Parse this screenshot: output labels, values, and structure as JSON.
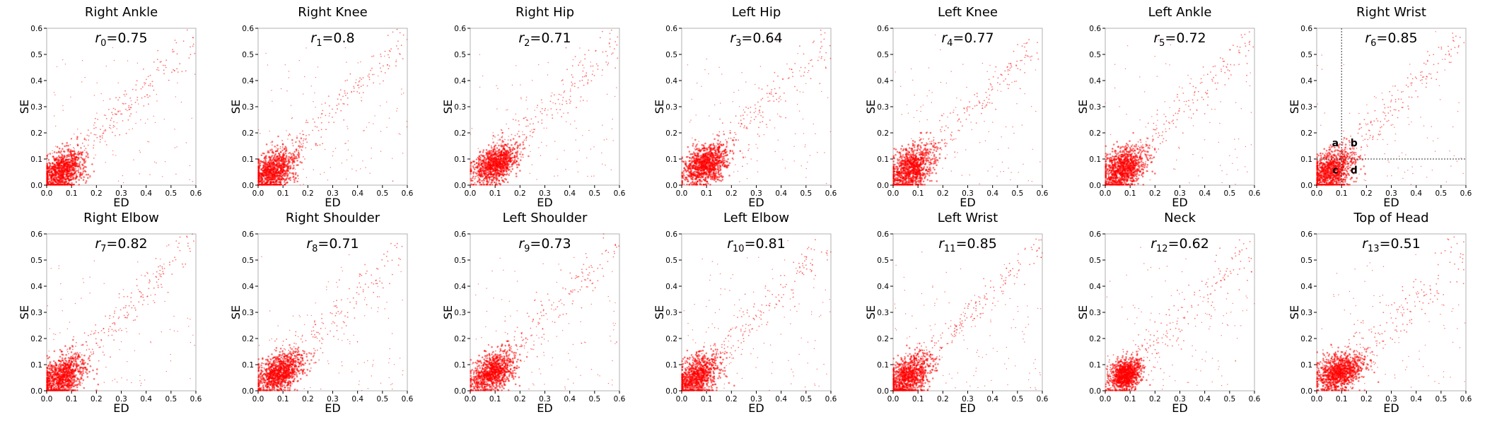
{
  "chart_data": [
    {
      "type": "scatter",
      "title": "Right Ankle",
      "annotation": {
        "symbol": "r",
        "subscript": "0",
        "value": "=0.75"
      },
      "xlabel": "ED",
      "ylabel": "SE",
      "xlim": [
        0,
        0.6
      ],
      "ylim": [
        0,
        0.6
      ],
      "xticks": [
        "0.0",
        "0.1",
        "0.2",
        "0.3",
        "0.4",
        "0.5",
        "0.6"
      ],
      "yticks": [
        "0.0",
        "0.1",
        "0.2",
        "0.3",
        "0.4",
        "0.5",
        "0.6"
      ],
      "grid": false,
      "point_color": "#ff0000",
      "cluster": {
        "center": [
          0.06,
          0.05
        ],
        "spread": [
          0.045,
          0.04
        ],
        "max": [
          0.22,
          0.17
        ]
      },
      "correlation": 0.75
    },
    {
      "type": "scatter",
      "title": "Right Knee",
      "annotation": {
        "symbol": "r",
        "subscript": "1",
        "value": "=0.8"
      },
      "xlabel": "ED",
      "ylabel": "SE",
      "xlim": [
        0,
        0.6
      ],
      "ylim": [
        0,
        0.6
      ],
      "xticks": [
        "0.0",
        "0.1",
        "0.2",
        "0.3",
        "0.4",
        "0.5",
        "0.6"
      ],
      "yticks": [
        "0.0",
        "0.1",
        "0.2",
        "0.3",
        "0.4",
        "0.5",
        "0.6"
      ],
      "grid": false,
      "point_color": "#ff0000",
      "cluster": {
        "center": [
          0.06,
          0.05
        ],
        "spread": [
          0.045,
          0.04
        ],
        "max": [
          0.22,
          0.17
        ]
      },
      "correlation": 0.8
    },
    {
      "type": "scatter",
      "title": "Right Hip",
      "annotation": {
        "symbol": "r",
        "subscript": "2",
        "value": "=0.71"
      },
      "xlabel": "ED",
      "ylabel": "SE",
      "xlim": [
        0,
        0.6
      ],
      "ylim": [
        0,
        0.6
      ],
      "xticks": [
        "0.0",
        "0.1",
        "0.2",
        "0.3",
        "0.4",
        "0.5",
        "0.6"
      ],
      "yticks": [
        "0.0",
        "0.1",
        "0.2",
        "0.3",
        "0.4",
        "0.5",
        "0.6"
      ],
      "grid": false,
      "point_color": "#ff0000",
      "cluster": {
        "center": [
          0.1,
          0.08
        ],
        "spread": [
          0.045,
          0.035
        ],
        "max": [
          0.24,
          0.17
        ]
      },
      "correlation": 0.71
    },
    {
      "type": "scatter",
      "title": "Left Hip",
      "annotation": {
        "symbol": "r",
        "subscript": "3",
        "value": "=0.64"
      },
      "xlabel": "ED",
      "ylabel": "SE",
      "xlim": [
        0,
        0.6
      ],
      "ylim": [
        0,
        0.6
      ],
      "xticks": [
        "0.0",
        "0.1",
        "0.2",
        "0.3",
        "0.4",
        "0.5",
        "0.6"
      ],
      "yticks": [
        "0.0",
        "0.1",
        "0.2",
        "0.3",
        "0.4",
        "0.5",
        "0.6"
      ],
      "grid": false,
      "point_color": "#ff0000",
      "cluster": {
        "center": [
          0.1,
          0.08
        ],
        "spread": [
          0.045,
          0.035
        ],
        "max": [
          0.24,
          0.17
        ]
      },
      "correlation": 0.64
    },
    {
      "type": "scatter",
      "title": "Left Knee",
      "annotation": {
        "symbol": "r",
        "subscript": "4",
        "value": "=0.77"
      },
      "xlabel": "ED",
      "ylabel": "SE",
      "xlim": [
        0,
        0.6
      ],
      "ylim": [
        0,
        0.6
      ],
      "xticks": [
        "0.0",
        "0.1",
        "0.2",
        "0.3",
        "0.4",
        "0.5",
        "0.6"
      ],
      "yticks": [
        "0.0",
        "0.1",
        "0.2",
        "0.3",
        "0.4",
        "0.5",
        "0.6"
      ],
      "grid": false,
      "point_color": "#ff0000",
      "cluster": {
        "center": [
          0.07,
          0.06
        ],
        "spread": [
          0.045,
          0.04
        ],
        "max": [
          0.22,
          0.17
        ]
      },
      "correlation": 0.77
    },
    {
      "type": "scatter",
      "title": "Left Ankle",
      "annotation": {
        "symbol": "r",
        "subscript": "5",
        "value": "=0.72"
      },
      "xlabel": "ED",
      "ylabel": "SE",
      "xlim": [
        0,
        0.6
      ],
      "ylim": [
        0,
        0.6
      ],
      "xticks": [
        "0.0",
        "0.1",
        "0.2",
        "0.3",
        "0.4",
        "0.5",
        "0.6"
      ],
      "yticks": [
        "0.0",
        "0.1",
        "0.2",
        "0.3",
        "0.4",
        "0.5",
        "0.6"
      ],
      "grid": false,
      "point_color": "#ff0000",
      "cluster": {
        "center": [
          0.07,
          0.06
        ],
        "spread": [
          0.045,
          0.04
        ],
        "max": [
          0.22,
          0.17
        ]
      },
      "correlation": 0.72
    },
    {
      "type": "scatter",
      "title": "Right Wrist",
      "annotation": {
        "symbol": "r",
        "subscript": "6",
        "value": "=0.85"
      },
      "xlabel": "ED",
      "ylabel": "SE",
      "xlim": [
        0,
        0.6
      ],
      "ylim": [
        0,
        0.6
      ],
      "xticks": [
        "0.0",
        "0.1",
        "0.2",
        "0.3",
        "0.4",
        "0.5",
        "0.6"
      ],
      "yticks": [
        "0.0",
        "0.1",
        "0.2",
        "0.3",
        "0.4",
        "0.5",
        "0.6"
      ],
      "grid": false,
      "point_color": "#ff0000",
      "cluster": {
        "center": [
          0.06,
          0.05
        ],
        "spread": [
          0.045,
          0.04
        ],
        "max": [
          0.22,
          0.17
        ]
      },
      "correlation": 0.85,
      "reference_lines": {
        "x": 0.1,
        "y": 0.1
      },
      "quadrant_labels": [
        {
          "text": "a",
          "x": 0.075,
          "y": 0.16
        },
        {
          "text": "b",
          "x": 0.15,
          "y": 0.16
        },
        {
          "text": "c",
          "x": 0.075,
          "y": 0.055
        },
        {
          "text": "d",
          "x": 0.15,
          "y": 0.055
        }
      ]
    },
    {
      "type": "scatter",
      "title": "Right Elbow",
      "annotation": {
        "symbol": "r",
        "subscript": "7",
        "value": "=0.82"
      },
      "xlabel": "ED",
      "ylabel": "SE",
      "xlim": [
        0,
        0.6
      ],
      "ylim": [
        0,
        0.6
      ],
      "xticks": [
        "0.0",
        "0.1",
        "0.2",
        "0.3",
        "0.4",
        "0.5",
        "0.6"
      ],
      "yticks": [
        "0.0",
        "0.1",
        "0.2",
        "0.3",
        "0.4",
        "0.5",
        "0.6"
      ],
      "grid": false,
      "point_color": "#ff0000",
      "cluster": {
        "center": [
          0.06,
          0.05
        ],
        "spread": [
          0.045,
          0.04
        ],
        "max": [
          0.22,
          0.17
        ]
      },
      "correlation": 0.82
    },
    {
      "type": "scatter",
      "title": "Right Shoulder",
      "annotation": {
        "symbol": "r",
        "subscript": "8",
        "value": "=0.71"
      },
      "xlabel": "ED",
      "ylabel": "SE",
      "xlim": [
        0,
        0.6
      ],
      "ylim": [
        0,
        0.6
      ],
      "xticks": [
        "0.0",
        "0.1",
        "0.2",
        "0.3",
        "0.4",
        "0.5",
        "0.6"
      ],
      "yticks": [
        "0.0",
        "0.1",
        "0.2",
        "0.3",
        "0.4",
        "0.5",
        "0.6"
      ],
      "grid": false,
      "point_color": "#ff0000",
      "cluster": {
        "center": [
          0.09,
          0.07
        ],
        "spread": [
          0.045,
          0.035
        ],
        "max": [
          0.22,
          0.16
        ]
      },
      "correlation": 0.71
    },
    {
      "type": "scatter",
      "title": "Left Shoulder",
      "annotation": {
        "symbol": "r",
        "subscript": "9",
        "value": "=0.73"
      },
      "xlabel": "ED",
      "ylabel": "SE",
      "xlim": [
        0,
        0.6
      ],
      "ylim": [
        0,
        0.6
      ],
      "xticks": [
        "0.0",
        "0.1",
        "0.2",
        "0.3",
        "0.4",
        "0.5",
        "0.6"
      ],
      "yticks": [
        "0.0",
        "0.1",
        "0.2",
        "0.3",
        "0.4",
        "0.5",
        "0.6"
      ],
      "grid": false,
      "point_color": "#ff0000",
      "cluster": {
        "center": [
          0.09,
          0.07
        ],
        "spread": [
          0.045,
          0.035
        ],
        "max": [
          0.22,
          0.16
        ]
      },
      "correlation": 0.73
    },
    {
      "type": "scatter",
      "title": "Left Elbow",
      "annotation": {
        "symbol": "r",
        "subscript": "10",
        "value": "=0.81"
      },
      "xlabel": "ED",
      "ylabel": "SE",
      "xlim": [
        0,
        0.6
      ],
      "ylim": [
        0,
        0.6
      ],
      "xticks": [
        "0.0",
        "0.1",
        "0.2",
        "0.3",
        "0.4",
        "0.5",
        "0.6"
      ],
      "yticks": [
        "0.0",
        "0.1",
        "0.2",
        "0.3",
        "0.4",
        "0.5",
        "0.6"
      ],
      "grid": false,
      "point_color": "#ff0000",
      "cluster": {
        "center": [
          0.06,
          0.05
        ],
        "spread": [
          0.045,
          0.04
        ],
        "max": [
          0.22,
          0.17
        ]
      },
      "correlation": 0.81
    },
    {
      "type": "scatter",
      "title": "Left Wrist",
      "annotation": {
        "symbol": "r",
        "subscript": "11",
        "value": "=0.85"
      },
      "xlabel": "ED",
      "ylabel": "SE",
      "xlim": [
        0,
        0.6
      ],
      "ylim": [
        0,
        0.6
      ],
      "xticks": [
        "0.0",
        "0.1",
        "0.2",
        "0.3",
        "0.4",
        "0.5",
        "0.6"
      ],
      "yticks": [
        "0.0",
        "0.1",
        "0.2",
        "0.3",
        "0.4",
        "0.5",
        "0.6"
      ],
      "grid": false,
      "point_color": "#ff0000",
      "cluster": {
        "center": [
          0.06,
          0.05
        ],
        "spread": [
          0.045,
          0.04
        ],
        "max": [
          0.22,
          0.17
        ]
      },
      "correlation": 0.85
    },
    {
      "type": "scatter",
      "title": "Neck",
      "annotation": {
        "symbol": "r",
        "subscript": "12",
        "value": "=0.62"
      },
      "xlabel": "ED",
      "ylabel": "SE",
      "xlim": [
        0,
        0.6
      ],
      "ylim": [
        0,
        0.6
      ],
      "xticks": [
        "0.0",
        "0.1",
        "0.2",
        "0.3",
        "0.4",
        "0.5",
        "0.6"
      ],
      "yticks": [
        "0.0",
        "0.1",
        "0.2",
        "0.3",
        "0.4",
        "0.5",
        "0.6"
      ],
      "grid": false,
      "point_color": "#ff0000",
      "cluster": {
        "center": [
          0.08,
          0.06
        ],
        "spread": [
          0.03,
          0.03
        ],
        "max": [
          0.14,
          0.12
        ]
      },
      "correlation": 0.62
    },
    {
      "type": "scatter",
      "title": "Top of Head",
      "annotation": {
        "symbol": "r",
        "subscript": "13",
        "value": "=0.51"
      },
      "xlabel": "ED",
      "ylabel": "SE",
      "xlim": [
        0,
        0.6
      ],
      "ylim": [
        0,
        0.6
      ],
      "xticks": [
        "0.0",
        "0.1",
        "0.2",
        "0.3",
        "0.4",
        "0.5",
        "0.6"
      ],
      "yticks": [
        "0.0",
        "0.1",
        "0.2",
        "0.3",
        "0.4",
        "0.5",
        "0.6"
      ],
      "grid": false,
      "point_color": "#ff0000",
      "cluster": {
        "center": [
          0.09,
          0.07
        ],
        "spread": [
          0.045,
          0.035
        ],
        "max": [
          0.22,
          0.16
        ]
      },
      "correlation": 0.51
    }
  ]
}
